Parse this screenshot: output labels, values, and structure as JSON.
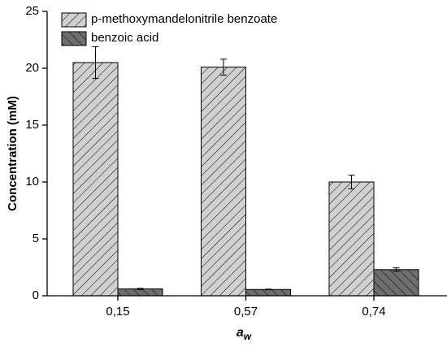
{
  "chart_data": {
    "type": "bar",
    "y_label": "Concentration (mM)",
    "x_label": {
      "text": "a",
      "subscript": "w"
    },
    "categories": [
      "0,15",
      "0,57",
      "0,74"
    ],
    "series": [
      {
        "name": "p-methoxymandelonitrile benzoate",
        "color": "#d0d0d0",
        "hatch": "forward",
        "values": [
          20.5,
          20.1,
          10.0
        ],
        "errors": [
          1.4,
          0.7,
          0.6
        ]
      },
      {
        "name": "benzoic acid",
        "color": "#6e6e6e",
        "hatch": "backward",
        "values": [
          0.6,
          0.55,
          2.3
        ],
        "errors": [
          0.05,
          0.03,
          0.15
        ]
      }
    ],
    "ylim": [
      0,
      25
    ],
    "yticks": [
      0,
      5,
      10,
      15,
      20,
      25
    ]
  }
}
